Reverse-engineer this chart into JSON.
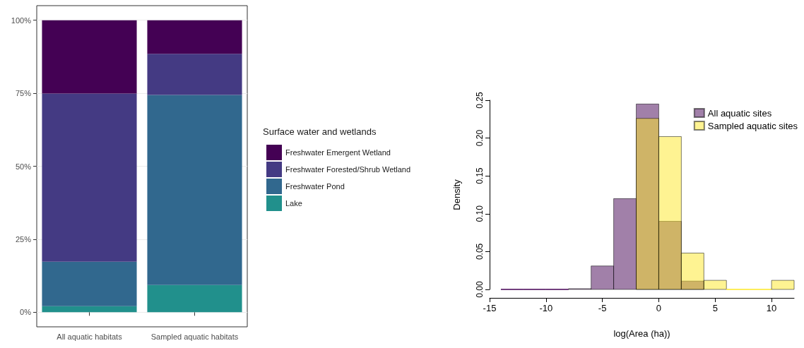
{
  "chart_data": [
    {
      "type": "bar",
      "stacked": true,
      "categories": [
        "All aquatic habitats",
        "Sampled aquatic habitats"
      ],
      "legend_title": "Surface water and wetlands",
      "legend": "right",
      "grid": "y",
      "ylim": [
        -5,
        105
      ],
      "yticks": [
        {
          "value": 0,
          "label": "0%"
        },
        {
          "value": 25,
          "label": "25%"
        },
        {
          "value": 50,
          "label": "50%"
        },
        {
          "value": 75,
          "label": "75%"
        },
        {
          "value": 100,
          "label": "100%"
        }
      ],
      "series": [
        {
          "name": "Lake",
          "color": "#21908c",
          "values": [
            2.1,
            9.3
          ]
        },
        {
          "name": "Freshwater Pond",
          "color": "#31688e",
          "values": [
            15.2,
            65.1
          ]
        },
        {
          "name": "Freshwater Forested/Shrub Wetland",
          "color": "#443a83",
          "values": [
            57.6,
            14.1
          ]
        },
        {
          "name": "Freshwater Emergent Wetland",
          "color": "#440154",
          "values": [
            25.1,
            11.5
          ]
        }
      ]
    },
    {
      "type": "histogram",
      "xlabel": "log(Area (ha))",
      "ylabel": "Density",
      "legend": "top right",
      "grid": false,
      "xlim": [
        -15,
        12
      ],
      "xticks": [
        -15,
        -10,
        -5,
        0,
        5,
        10
      ],
      "ylim": [
        0,
        0.25
      ],
      "yticks": [
        {
          "value": 0,
          "label": "0.00"
        },
        {
          "value": 0.05,
          "label": "0.05"
        },
        {
          "value": 0.1,
          "label": "0.10"
        },
        {
          "value": 0.15,
          "label": "0.15"
        },
        {
          "value": 0.2,
          "label": "0.20"
        },
        {
          "value": 0.25,
          "label": "0.25"
        }
      ],
      "bins": [
        -14,
        -12,
        -10,
        -8,
        -6,
        -4,
        -2,
        0,
        2,
        4,
        6,
        8,
        10,
        12
      ],
      "series": [
        {
          "name": "All aquatic sites",
          "color": "#440154",
          "values": [
            0,
            0,
            0,
            0.001,
            0.031,
            0.12,
            0.245,
            0.09,
            0.011,
            null,
            null,
            null,
            null
          ]
        },
        {
          "name": "Sampled aquatic sites",
          "color": "#fde725",
          "values": [
            null,
            null,
            null,
            null,
            null,
            null,
            0.226,
            0.202,
            0.048,
            0.012,
            0,
            0,
            0.012
          ]
        }
      ]
    }
  ]
}
